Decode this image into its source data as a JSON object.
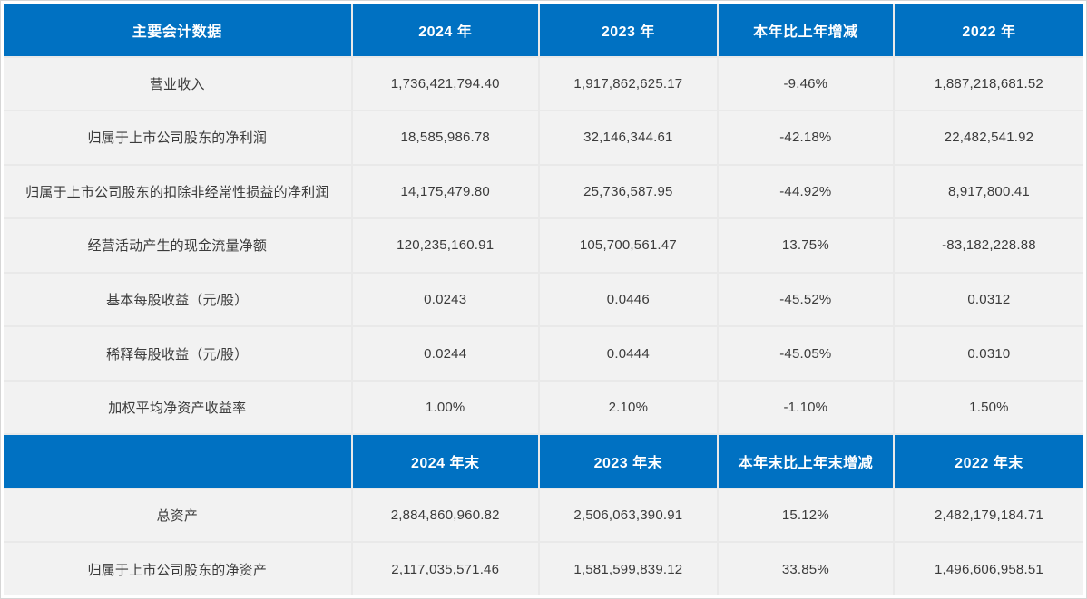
{
  "colors": {
    "header_bg": "#0071C2",
    "header_text": "#FFFFFF",
    "row_bg": "#F2F2F2",
    "body_text": "#3B3B3B",
    "grid_line": "#E9E9E9"
  },
  "table": {
    "section1": {
      "header": [
        "主要会计数据",
        "2024 年",
        "2023 年",
        "本年比上年增减",
        "2022 年"
      ],
      "rows": [
        {
          "cells": [
            "营业收入",
            "1,736,421,794.40",
            "1,917,862,625.17",
            "-9.46%",
            "1,887,218,681.52"
          ]
        },
        {
          "cells": [
            "归属于上市公司股东的净利润",
            "18,585,986.78",
            "32,146,344.61",
            "-42.18%",
            "22,482,541.92"
          ]
        },
        {
          "cells": [
            "归属于上市公司股东的扣除非经常性损益的净利润",
            "14,175,479.80",
            "25,736,587.95",
            "-44.92%",
            "8,917,800.41"
          ]
        },
        {
          "cells": [
            "经营活动产生的现金流量净额",
            "120,235,160.91",
            "105,700,561.47",
            "13.75%",
            "-83,182,228.88"
          ]
        },
        {
          "cells": [
            "基本每股收益（元/股）",
            "0.0243",
            "0.0446",
            "-45.52%",
            "0.0312"
          ]
        },
        {
          "cells": [
            "稀释每股收益（元/股）",
            "0.0244",
            "0.0444",
            "-45.05%",
            "0.0310"
          ]
        },
        {
          "cells": [
            "加权平均净资产收益率",
            "1.00%",
            "2.10%",
            "-1.10%",
            "1.50%"
          ]
        }
      ]
    },
    "section2": {
      "header": [
        "",
        "2024 年末",
        "2023 年末",
        "本年末比上年末增减",
        "2022 年末"
      ],
      "rows": [
        {
          "cells": [
            "总资产",
            "2,884,860,960.82",
            "2,506,063,390.91",
            "15.12%",
            "2,482,179,184.71"
          ]
        },
        {
          "cells": [
            "归属于上市公司股东的净资产",
            "2,117,035,571.46",
            "1,581,599,839.12",
            "33.85%",
            "1,496,606,958.51"
          ]
        }
      ]
    }
  }
}
